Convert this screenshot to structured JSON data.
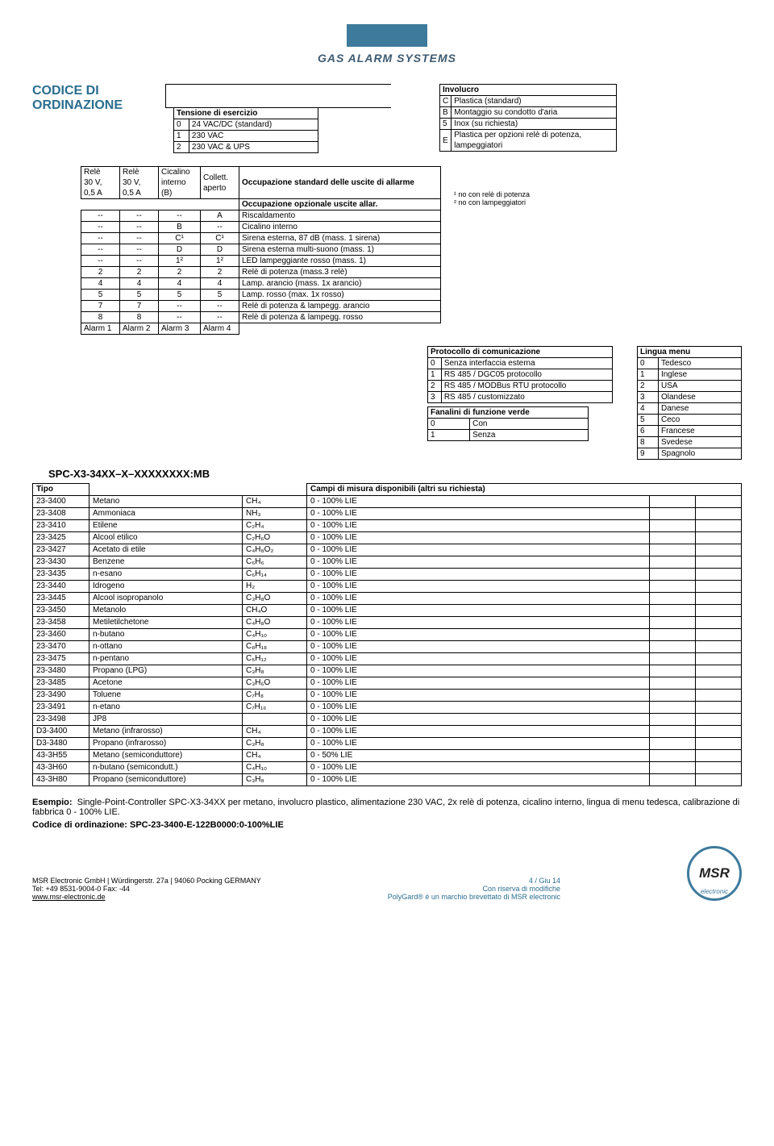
{
  "header": {
    "brand": "GAS ALARM SYSTEMS"
  },
  "title": {
    "line1": "CODICE DI",
    "line2": "ORDINAZIONE"
  },
  "tensione": {
    "header": "Tensione di esercizio",
    "rows": [
      [
        "0",
        "24 VAC/DC (standard)"
      ],
      [
        "1",
        "230 VAC"
      ],
      [
        "2",
        "230 VAC & UPS"
      ]
    ]
  },
  "involucro": {
    "header": "Involucro",
    "rows": [
      [
        "C",
        "Plastica (standard)"
      ],
      [
        "B",
        "Montaggio su condotto d'aria"
      ],
      [
        "5",
        "Inox (su richiesta)"
      ],
      [
        "E",
        "Plastica per opzioni relè di potenza, lampeggiatori"
      ]
    ]
  },
  "rele_cols": {
    "c1a": "Relè",
    "c1b": "30 V,",
    "c1c": "0,5 A",
    "c2a": "Relè",
    "c2b": "30 V,",
    "c2c": "0,5 A",
    "c3a": "Cicalino",
    "c3b": "interno",
    "c3c": "(B)",
    "c4a": "Collett.",
    "c4b": "aperto"
  },
  "rele_right_headers": {
    "h1": "Occupazione standard delle uscite di allarme",
    "h2": "Occupazione opzionale uscite allar."
  },
  "rele_rows": [
    [
      "--",
      "--",
      "--",
      "A",
      "Riscaldamento"
    ],
    [
      "--",
      "--",
      "B",
      "--",
      "Cicalino interno"
    ],
    [
      "--",
      "--",
      "C¹",
      "C¹",
      "Sirena esterna, 87 dB (mass. 1 sirena)"
    ],
    [
      "--",
      "--",
      "D",
      "D",
      "Sirena esterna multi-suono (mass. 1)"
    ],
    [
      "--",
      "--",
      "1²",
      "1²",
      "LED lampeggiante rosso (mass. 1)"
    ],
    [
      "2",
      "2",
      "2",
      "2",
      "Relè di potenza (mass.3 relè)"
    ],
    [
      "4",
      "4",
      "4",
      "4",
      "Lamp. arancio (mass. 1x arancio)"
    ],
    [
      "5",
      "5",
      "5",
      "5",
      "Lamp. rosso (max. 1x rosso)"
    ],
    [
      "7",
      "7",
      "--",
      "--",
      "Relè di potenza & lampegg. arancio"
    ],
    [
      "8",
      "8",
      "--",
      "--",
      "Relè di potenza & lampegg. rosso"
    ]
  ],
  "alarm_labels": [
    "Alarm 1",
    "Alarm 2",
    "Alarm 3",
    "Alarm 4"
  ],
  "footnotes": {
    "n1": "¹ no con relè di potenza",
    "n2": "² no con lampeggiatori"
  },
  "protocollo": {
    "header": "Protocollo di comunicazione",
    "rows": [
      [
        "0",
        "Senza interfaccia esterna"
      ],
      [
        "1",
        "RS 485 / DGC05 protocollo"
      ],
      [
        "2",
        "RS 485 / MODBus RTU protocollo"
      ],
      [
        "3",
        "RS 485 / customizzato"
      ]
    ]
  },
  "fanalini": {
    "header": "Fanalini di funzione verde",
    "rows": [
      [
        "0",
        "Con"
      ],
      [
        "1",
        "Senza"
      ]
    ]
  },
  "lingua": {
    "header": "Lingua menu",
    "rows": [
      [
        "0",
        "Tedesco"
      ],
      [
        "1",
        "Inglese"
      ],
      [
        "2",
        "USA"
      ],
      [
        "3",
        "Olandese"
      ],
      [
        "4",
        "Danese"
      ],
      [
        "5",
        "Ceco"
      ],
      [
        "6",
        "Francese"
      ],
      [
        "8",
        "Svedese"
      ],
      [
        "9",
        "Spagnolo"
      ]
    ]
  },
  "model_code": "SPC-X3-34XX–X–XXXXXXXX:MB",
  "tipo": {
    "header_left": "Tipo",
    "header_right": "Campi di misura disponibili (altri su richiesta)",
    "rows": [
      [
        "23-3400",
        "Metano",
        "CH₄",
        "0 - 100% LIE"
      ],
      [
        "23-3408",
        "Ammoniaca",
        "NH₃",
        "0 - 100% LIE"
      ],
      [
        "23-3410",
        "Etilene",
        "C₂H₄",
        "0 - 100% LIE"
      ],
      [
        "23-3425",
        "Alcool etilico",
        "C₂H₆O",
        "0 - 100% LIE"
      ],
      [
        "23-3427",
        "Acetato di etile",
        "C₄H₈O₂",
        "0 - 100% LIE"
      ],
      [
        "23-3430",
        "Benzene",
        "C₆H₆",
        "0 - 100% LIE"
      ],
      [
        "23-3435",
        "n-esano",
        "C₆H₁₄",
        "0 - 100% LIE"
      ],
      [
        "23-3440",
        "Idrogeno",
        "H₂",
        "0 - 100% LIE"
      ],
      [
        "23-3445",
        "Alcool isopropanolo",
        "C₃H₈O",
        "0 - 100% LIE"
      ],
      [
        "23-3450",
        "Metanolo",
        "CH₄O",
        "0 - 100% LIE"
      ],
      [
        "23-3458",
        "Metiletilchetone",
        "C₄H₈O",
        "0 - 100% LIE"
      ],
      [
        "23-3460",
        "n-butano",
        "C₄H₁₀",
        "0 - 100% LIE"
      ],
      [
        "23-3470",
        "n-ottano",
        "C₈H₁₈",
        "0 - 100% LIE"
      ],
      [
        "23-3475",
        "n-pentano",
        "C₅H₁₂",
        "0 - 100% LIE"
      ],
      [
        "23-3480",
        "Propano (LPG)",
        "C₃H₈",
        "0 - 100% LIE"
      ],
      [
        "23-3485",
        "Acetone",
        "C₃H₆O",
        "0 - 100% LIE"
      ],
      [
        "23-3490",
        "Toluene",
        "C₇H₈",
        "0 - 100% LIE"
      ],
      [
        "23-3491",
        "n-etano",
        "C₇H₁₆",
        "0 - 100% LIE"
      ],
      [
        "23-3498",
        "JP8",
        "",
        "0 - 100% LIE"
      ],
      [
        "D3-3400",
        "Metano (infrarosso)",
        "CH₄",
        "0 - 100% LIE"
      ],
      [
        "D3-3480",
        "Propano (infrarosso)",
        "C₃H₈",
        "0 - 100% LIE"
      ],
      [
        "43-3H55",
        "Metano (semiconduttore)",
        "CH₄",
        "0 - 50% LIE"
      ],
      [
        "43-3H60",
        "n-butano (semicondutt.)",
        "C₄H₁₀",
        "0 - 100% LIE"
      ],
      [
        "43-3H80",
        "Propano (semiconduttore)",
        "C₃H₈",
        "0 - 100% LIE"
      ]
    ]
  },
  "example": {
    "label": "Esempio:",
    "text": "Single-Point-Controller SPC-X3-34XX per metano, involucro plastico, alimentazione 230 VAC, 2x relè di potenza, cicalino interno, lingua di menu tedesca, calibrazione di fabbrica 0 - 100% LIE.",
    "code_label": "Codice di ordinazione: SPC-23-3400-E-122B0000:0-100%LIE"
  },
  "footer": {
    "l1": "MSR Electronic GmbH | Würdingerstr. 27a | 94060 Pocking GERMANY",
    "l2": "Tel: +49 8531-9004-0 Fax: -44",
    "l3": "www.msr-electronic.de",
    "r1": "4 / Giu 14",
    "r2": "Con riserva di modifiche",
    "r3": "PolyGard® é un marchio brevettato di MSR electronic",
    "logo": "MSR",
    "logo_sub": "electronic"
  }
}
